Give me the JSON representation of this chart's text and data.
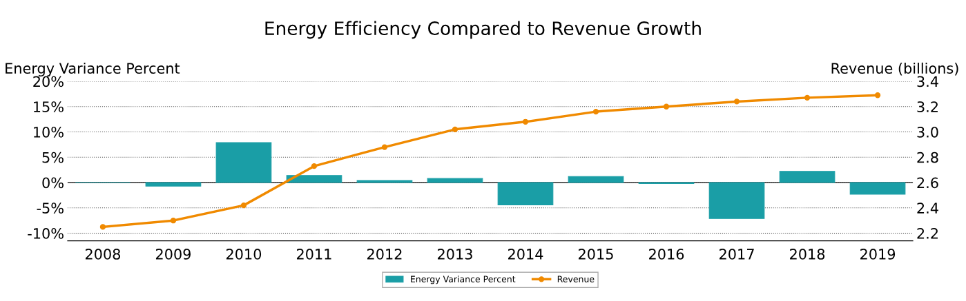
{
  "chart_data": {
    "type": "bar",
    "title": "Energy Efficiency Compared to Revenue Growth",
    "ylabel": "Energy Variance Percent",
    "y2label": "Revenue (billions)",
    "categories": [
      "2008",
      "2009",
      "2010",
      "2011",
      "2012",
      "2013",
      "2014",
      "2015",
      "2016",
      "2017",
      "2018",
      "2019"
    ],
    "series": [
      {
        "name": "Energy Variance Percent",
        "color": "#1a9ea6",
        "values": [
          0.0,
          -0.7,
          7.9,
          1.4,
          0.4,
          0.8,
          -4.4,
          1.2,
          -0.2,
          -7.1,
          2.2,
          -2.3
        ]
      },
      {
        "name": "Revenue",
        "type": "line",
        "axis": "y2",
        "color": "#f08a00",
        "marker": "circle",
        "values": [
          2.25,
          2.3,
          2.42,
          2.73,
          2.88,
          3.02,
          3.08,
          3.16,
          3.2,
          3.24,
          3.27,
          3.29
        ]
      }
    ],
    "ylim": [
      -11.5,
      20
    ],
    "yticks": [
      {
        "value": -10,
        "label": "-10%"
      },
      {
        "value": -5,
        "label": "-5%"
      },
      {
        "value": 0,
        "label": "0%"
      },
      {
        "value": 5,
        "label": "5%"
      },
      {
        "value": 10,
        "label": "10%"
      },
      {
        "value": 15,
        "label": "15%"
      },
      {
        "value": 20,
        "label": "20%"
      }
    ],
    "y2lim": [
      2.14,
      3.4
    ],
    "y2ticks": [
      {
        "value": 2.2,
        "label": "2.2"
      },
      {
        "value": 2.4,
        "label": "2.4"
      },
      {
        "value": 2.6,
        "label": "2.6"
      },
      {
        "value": 2.8,
        "label": "2.8"
      },
      {
        "value": 3.0,
        "label": "3.0"
      },
      {
        "value": 3.2,
        "label": "3.2"
      },
      {
        "value": 3.4,
        "label": "3.4"
      }
    ],
    "grid": "y",
    "legend": "bottom"
  }
}
